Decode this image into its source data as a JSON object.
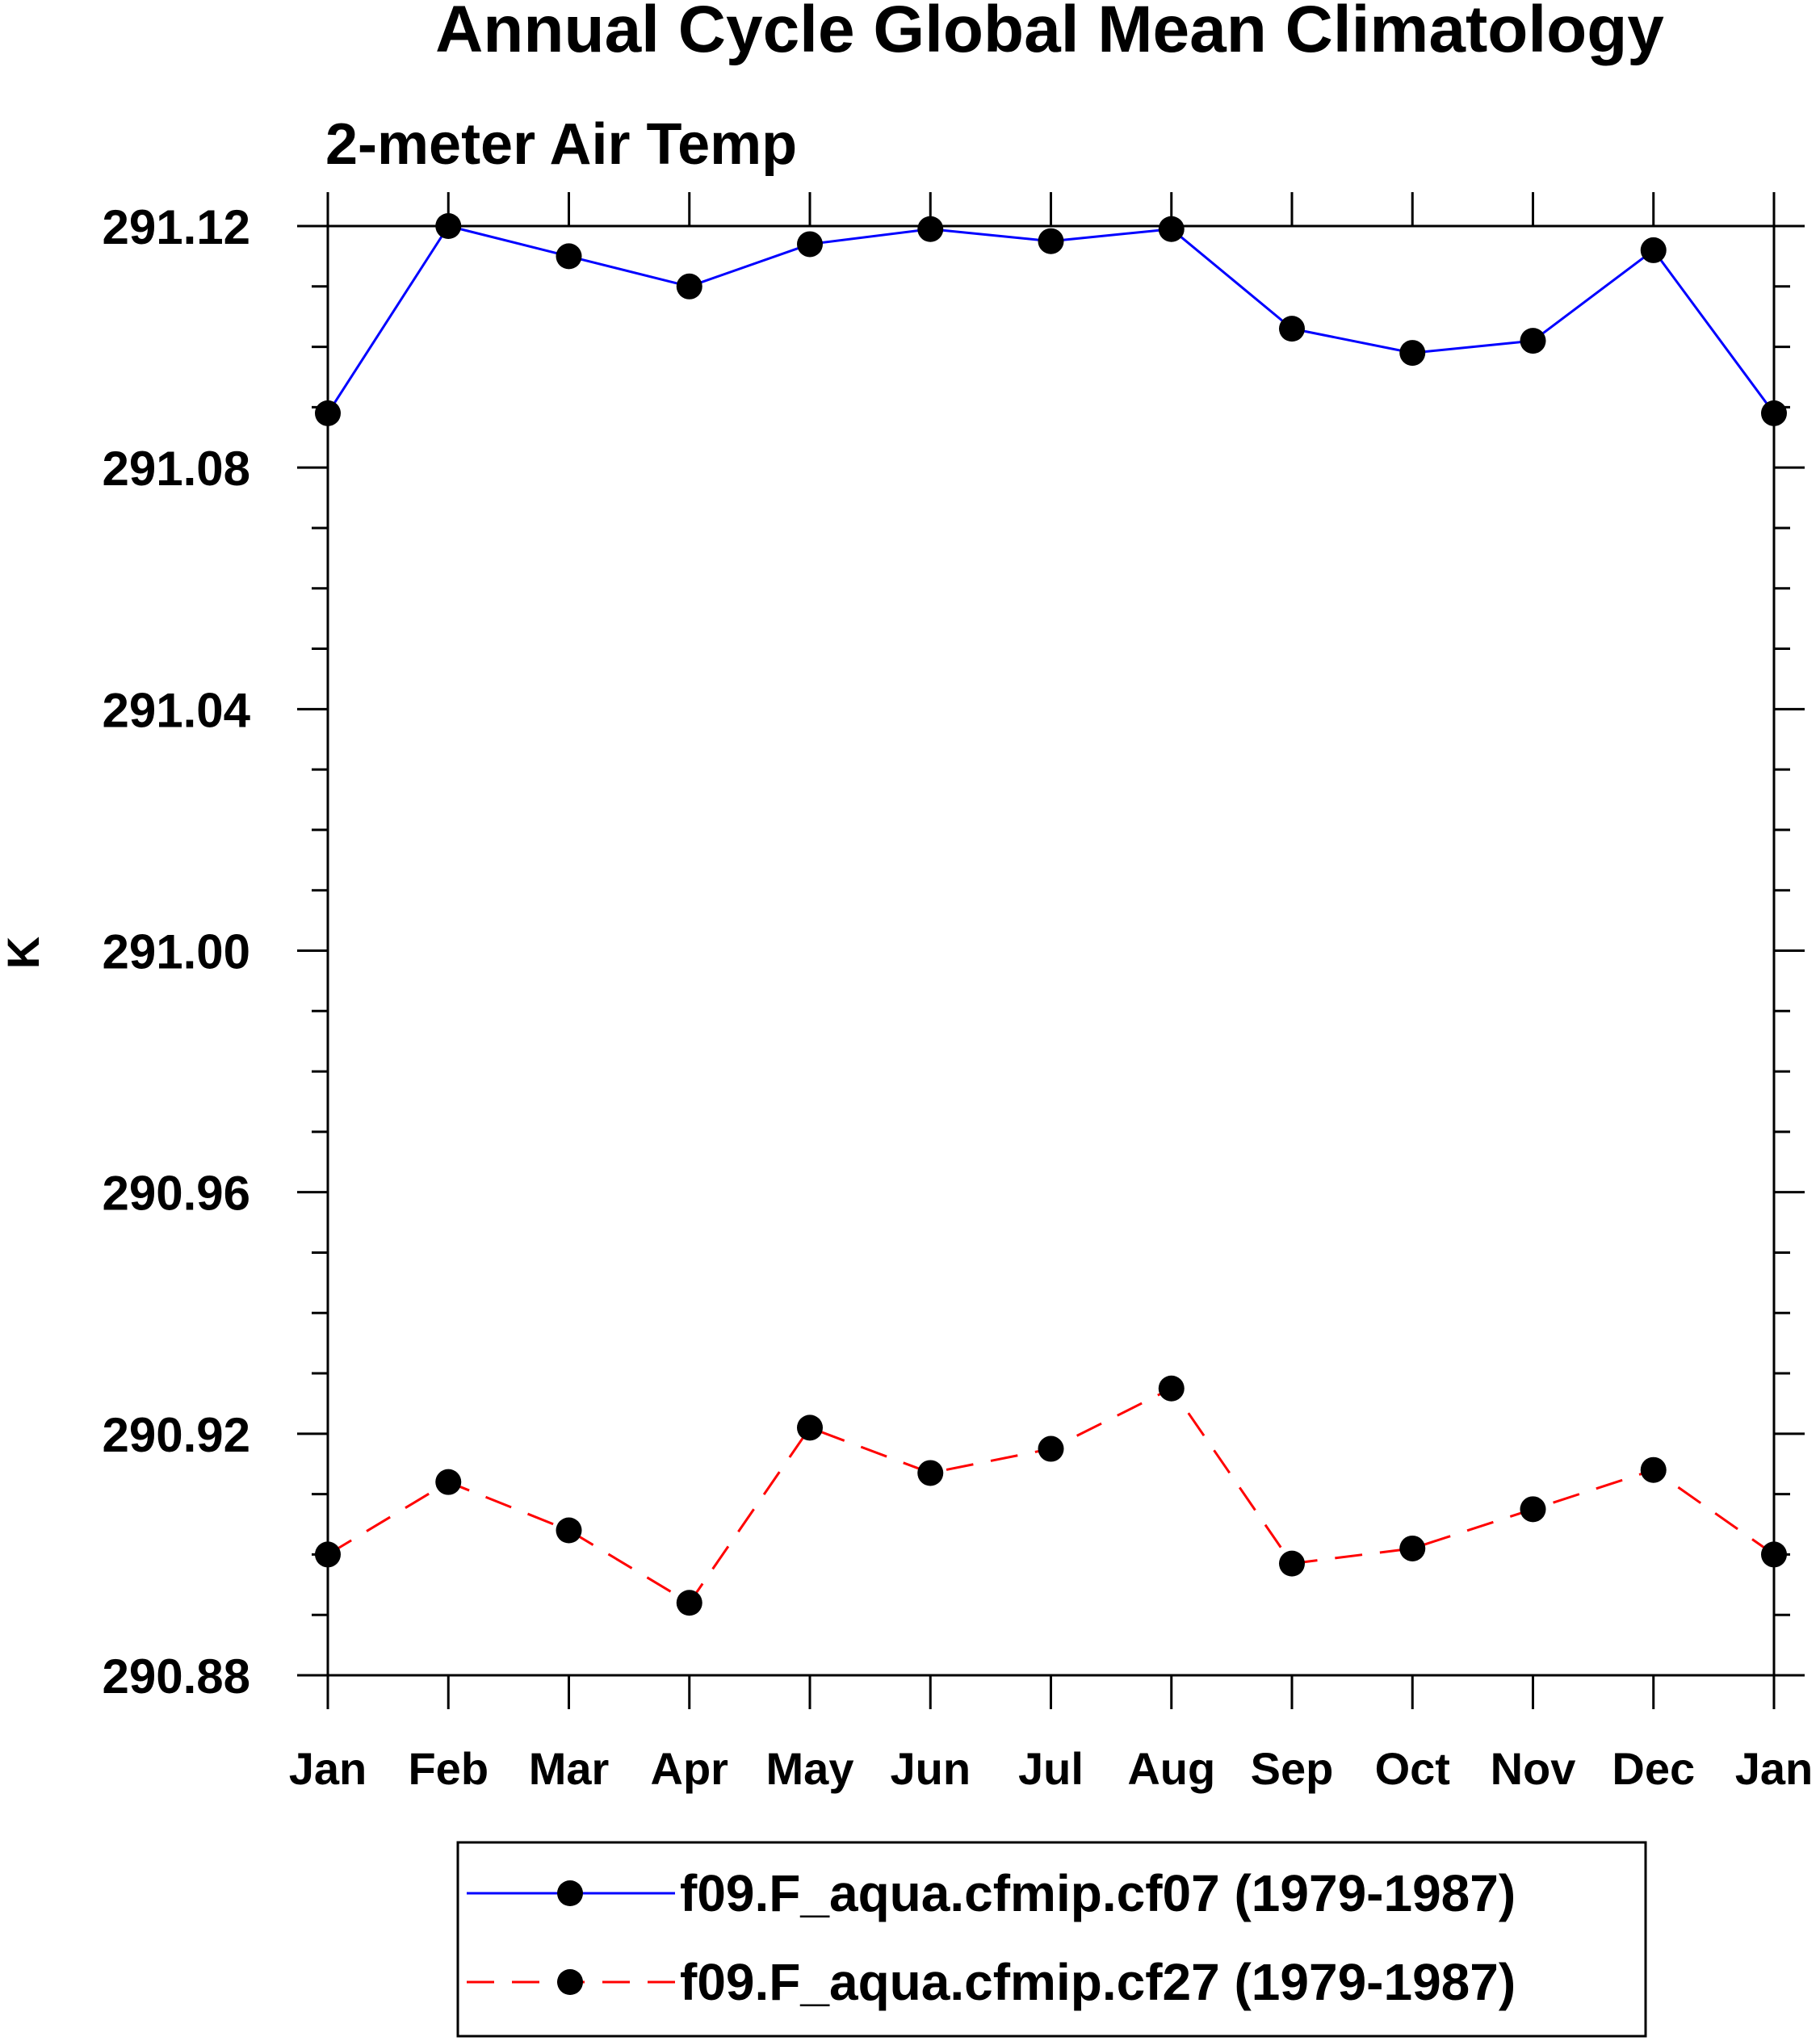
{
  "chart_data": {
    "type": "line",
    "title": "Annual Cycle Global Mean Climatology",
    "subtitle": "2-meter Air Temp",
    "ylabel": "K",
    "xlabel": "",
    "categories": [
      "Jan",
      "Feb",
      "Mar",
      "Apr",
      "May",
      "Jun",
      "Jul",
      "Aug",
      "Sep",
      "Oct",
      "Nov",
      "Dec",
      "Jan"
    ],
    "ylim": [
      290.88,
      291.12
    ],
    "yticks": [
      "291.12",
      "291.08",
      "291.04",
      "291.00",
      "290.96",
      "290.92",
      "290.88"
    ],
    "grid": false,
    "legend_position": "bottom-center",
    "series": [
      {
        "name": "f09.F_aqua.cfmip.cf07 (1979-1987)",
        "color": "#0000ff",
        "dash": "solid",
        "marker": "filled-circle",
        "values": [
          291.089,
          291.12,
          291.115,
          291.11,
          291.117,
          291.1195,
          291.1175,
          291.1195,
          291.103,
          291.099,
          291.101,
          291.116,
          291.089
        ]
      },
      {
        "name": "f09.F_aqua.cfmip.cf27 (1979-1987)",
        "color": "#ff0000",
        "dash": "dashed",
        "marker": "filled-circle",
        "values": [
          290.9,
          290.912,
          290.904,
          290.892,
          290.921,
          290.9135,
          290.9175,
          290.9275,
          290.8985,
          290.901,
          290.9075,
          290.914,
          290.9
        ]
      }
    ]
  }
}
